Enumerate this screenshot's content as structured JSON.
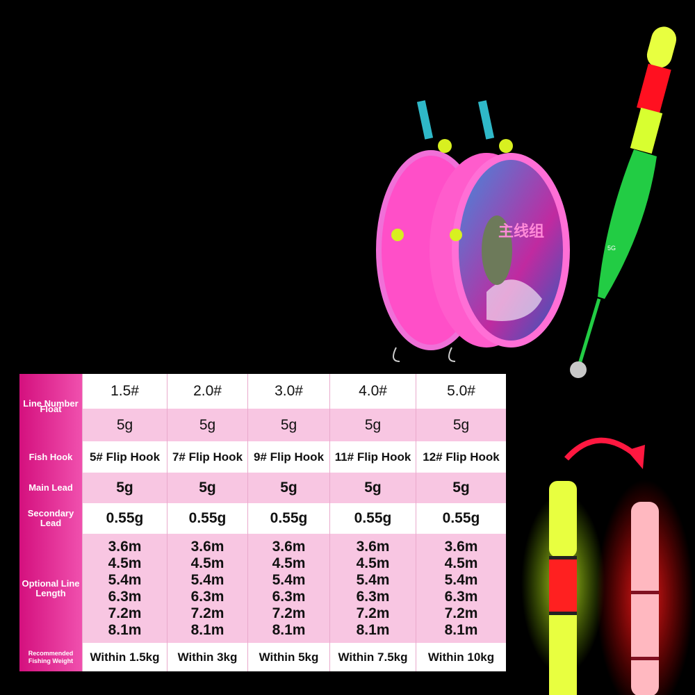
{
  "spool_label": "主线组",
  "float_mark": "5G",
  "table": {
    "row_headers": [
      "Line Number",
      "Float",
      "Fish Hook",
      "Main Lead",
      "Secondary Lead",
      "Optional Line Length",
      "Recommended Fishing Weight"
    ],
    "rows": [
      [
        "1.5#",
        "2.0#",
        "3.0#",
        "4.0#",
        "5.0#"
      ],
      [
        "5g",
        "5g",
        "5g",
        "5g",
        "5g"
      ],
      [
        "5# Flip Hook",
        "7# Flip Hook",
        "9# Flip Hook",
        "11# Flip Hook",
        "12# Flip Hook"
      ],
      [
        "5g",
        "5g",
        "5g",
        "5g",
        "5g"
      ],
      [
        "0.55g",
        "0.55g",
        "0.55g",
        "0.55g",
        "0.55g"
      ],
      [
        [
          "3.6m",
          "4.5m",
          "5.4m",
          "6.3m",
          "7.2m",
          "8.1m"
        ],
        [
          "3.6m",
          "4.5m",
          "5.4m",
          "6.3m",
          "7.2m",
          "8.1m"
        ],
        [
          "3.6m",
          "4.5m",
          "5.4m",
          "6.3m",
          "7.2m",
          "8.1m"
        ],
        [
          "3.6m",
          "4.5m",
          "5.4m",
          "6.3m",
          "7.2m",
          "8.1m"
        ],
        [
          "3.6m",
          "4.5m",
          "5.4m",
          "6.3m",
          "7.2m",
          "8.1m"
        ]
      ],
      [
        "Within 1.5kg",
        "Within 3kg",
        "Within 5kg",
        "Within 7.5kg",
        "Within 10kg"
      ]
    ]
  }
}
